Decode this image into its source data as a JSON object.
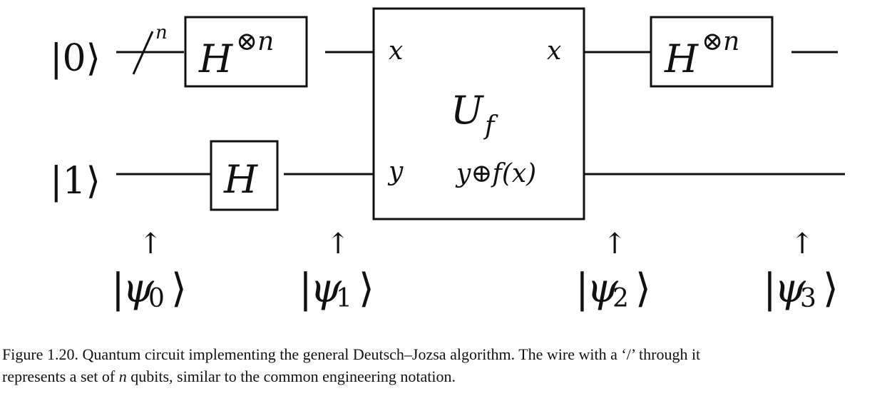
{
  "circuit": {
    "inputs": [
      {
        "label": "|0⟩"
      },
      {
        "label": "|1⟩"
      }
    ],
    "register_width_label": "n",
    "gates": {
      "h_n_before": {
        "base": "H",
        "sup": "⊗n"
      },
      "h_single": {
        "base": "H"
      },
      "h_n_after": {
        "base": "H",
        "sup": "⊗n"
      }
    },
    "oracle": {
      "name": "U",
      "name_sub": "f",
      "in_top": "x",
      "in_bottom": "y",
      "out_top": "x",
      "out_bottom": "y⊕f(x)"
    },
    "states": [
      {
        "psi": "ψ",
        "index": "0"
      },
      {
        "psi": "ψ",
        "index": "1"
      },
      {
        "psi": "ψ",
        "index": "2"
      },
      {
        "psi": "ψ",
        "index": "3"
      }
    ],
    "state_arrow": "↑"
  },
  "caption": {
    "line1": "Figure 1.20. Quantum circuit implementing the general Deutsch–Jozsa algorithm. The wire with a ‘/’ through it",
    "line2_pre": "represents a set of ",
    "line2_var": "n",
    "line2_post": " qubits, similar to the common engineering notation."
  }
}
